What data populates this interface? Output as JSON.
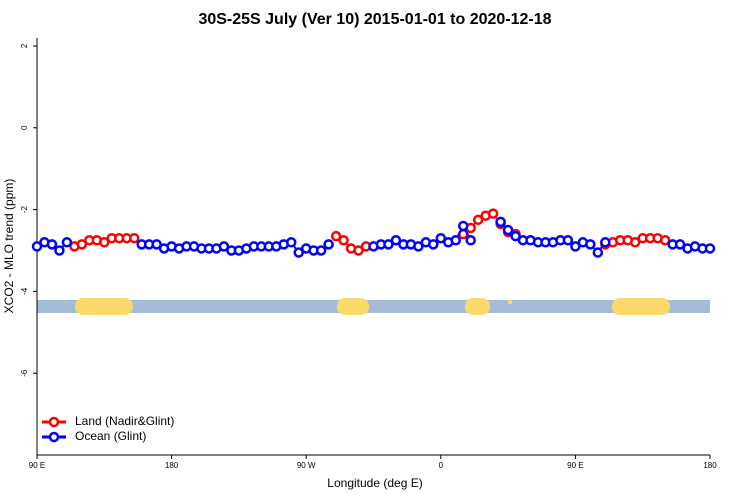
{
  "chart_data": {
    "type": "line",
    "title": "30S-25S July (Ver 10)   2015-01-01 to 2020-12-18",
    "x_label": "Longitude (deg E)",
    "y_label": "XCO2 - MLO trend (ppm)",
    "x": [
      90,
      95,
      100,
      105,
      110,
      115,
      120,
      125,
      130,
      135,
      140,
      145,
      150,
      155,
      160,
      165,
      170,
      175,
      180,
      185,
      190,
      195,
      200,
      205,
      210,
      215,
      220,
      225,
      230,
      235,
      240,
      245,
      250,
      255,
      260,
      265,
      270,
      275,
      280,
      285,
      290,
      295,
      300,
      305,
      310,
      315,
      320,
      325,
      330,
      335,
      340,
      345,
      350,
      355,
      360,
      365,
      370,
      375,
      380,
      385,
      390,
      395,
      400,
      405,
      410,
      415,
      420,
      425,
      430,
      435,
      440,
      445,
      450,
      455,
      460,
      465,
      470,
      475,
      480,
      485,
      490,
      495,
      500,
      505,
      510,
      515,
      520,
      525,
      530,
      535,
      540
    ],
    "series": [
      {
        "name": "Land (Nadir&Glint)",
        "color": "#ff0000",
        "values": [
          null,
          null,
          null,
          null,
          null,
          -2.9,
          -2.85,
          -2.75,
          -2.75,
          -2.8,
          -2.7,
          -2.7,
          -2.7,
          -2.7,
          null,
          null,
          null,
          null,
          null,
          null,
          null,
          null,
          null,
          null,
          null,
          null,
          null,
          null,
          null,
          null,
          null,
          null,
          null,
          null,
          null,
          null,
          null,
          null,
          null,
          null,
          -2.65,
          -2.75,
          -2.95,
          -3.0,
          -2.9,
          null,
          null,
          null,
          null,
          null,
          null,
          null,
          null,
          null,
          null,
          null,
          null,
          -2.6,
          -2.45,
          -2.25,
          -2.15,
          -2.1,
          -2.35,
          -2.55,
          -2.6,
          null,
          null,
          null,
          null,
          null,
          null,
          null,
          null,
          null,
          null,
          null,
          -2.85,
          -2.8,
          -2.75,
          -2.75,
          -2.8,
          -2.7,
          -2.7,
          -2.7,
          -2.75,
          null,
          null,
          null,
          null,
          null,
          null
        ]
      },
      {
        "name": "Ocean (Glint)",
        "color": "#0000ff",
        "values": [
          -2.9,
          -2.8,
          -2.85,
          -3.0,
          -2.8,
          null,
          null,
          null,
          null,
          null,
          null,
          null,
          null,
          null,
          -2.85,
          -2.85,
          -2.85,
          -2.95,
          -2.9,
          -2.95,
          -2.9,
          -2.9,
          -2.95,
          -2.95,
          -2.95,
          -2.9,
          -3.0,
          -3.0,
          -2.95,
          -2.9,
          -2.9,
          -2.9,
          -2.9,
          -2.85,
          -2.8,
          -3.05,
          -2.95,
          -3.0,
          -3.0,
          -2.85,
          null,
          null,
          null,
          null,
          null,
          -2.9,
          -2.85,
          -2.85,
          -2.75,
          -2.85,
          -2.85,
          -2.9,
          -2.8,
          -2.85,
          -2.7,
          -2.8,
          -2.75,
          -2.4,
          -2.75,
          null,
          null,
          null,
          -2.3,
          -2.5,
          -2.65,
          -2.75,
          -2.75,
          -2.8,
          -2.8,
          -2.8,
          -2.75,
          -2.75,
          -2.9,
          -2.8,
          -2.85,
          -3.05,
          -2.8,
          null,
          null,
          null,
          null,
          null,
          null,
          null,
          null,
          -2.85,
          -2.85,
          -2.95,
          -2.9,
          -2.95,
          -2.95
        ]
      }
    ],
    "xlim": [
      90,
      540
    ],
    "xticks": [
      {
        "value": 90,
        "label": "90 E"
      },
      180,
      {
        "value": 270,
        "label": "90 W"
      },
      {
        "value": 360,
        "label": "0"
      },
      {
        "value": 450,
        "label": "90 E"
      },
      {
        "value": 540,
        "label": "180"
      }
    ],
    "ylim": [
      -8,
      2.2
    ],
    "yticks": [
      2,
      0,
      -2,
      -4,
      -6
    ],
    "legend": "bottom-left"
  }
}
